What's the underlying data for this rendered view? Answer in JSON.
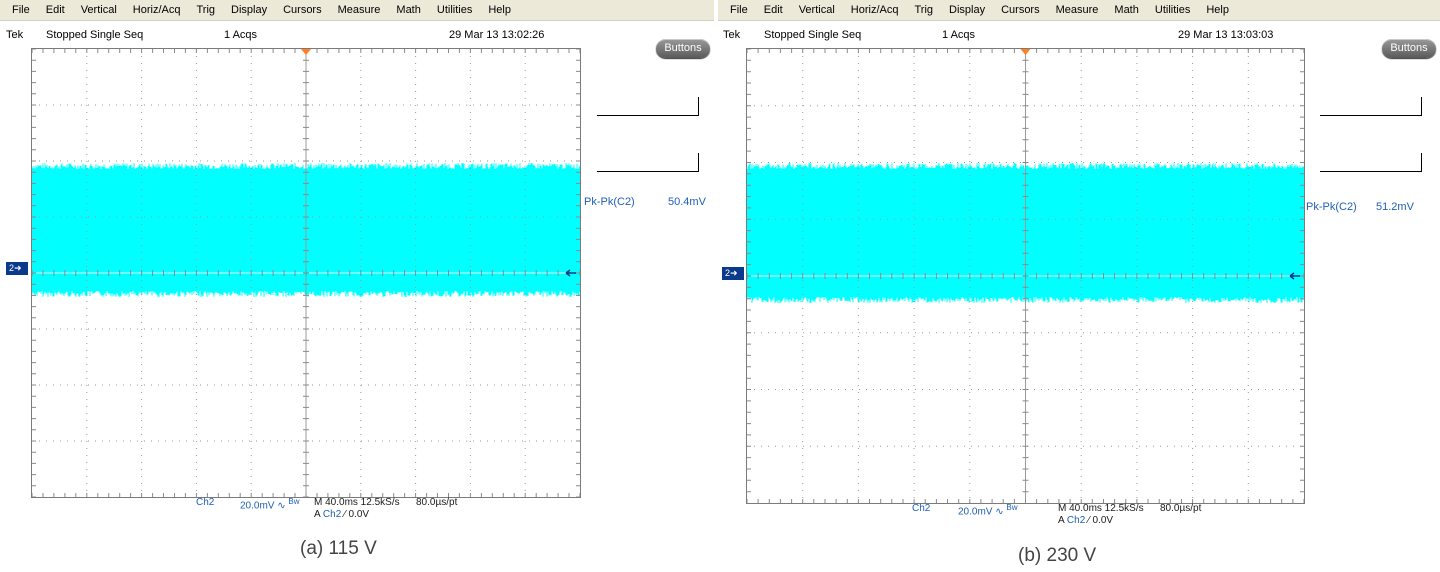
{
  "menu": [
    "File",
    "Edit",
    "Vertical",
    "Horiz/Acq",
    "Trig",
    "Display",
    "Cursors",
    "Measure",
    "Math",
    "Utilities",
    "Help"
  ],
  "colors": {
    "trace": "#00ffff",
    "grid": "#9a9a9a",
    "readout": "#1f5fb8",
    "marker": "#0b3a8c",
    "trigger": "#ff7f27"
  },
  "icons": {
    "trigger_position": "down-triangle-icon",
    "channel_marker": "right-arrow-icon",
    "level_marker": "left-arrow-icon"
  },
  "panels": [
    {
      "brand": "Tek",
      "status": "Stopped  Single Seq",
      "acqs": "1 Acqs",
      "datetime": "29 Mar 13 13:02:26",
      "buttons_label": "Buttons",
      "channel_marker": "2",
      "measurement_label": "Pk-Pk(C2)",
      "measurement_value": "50.4mV",
      "channel": "Ch2",
      "volts_div": "20.0mV",
      "bw_symbol": "∿",
      "bw": "Bw",
      "timebase": "M 40.0ms 12.5kS/s",
      "per_point": "80.0µs/pt",
      "trigger_prefix": "A",
      "trigger_channel": "Ch2",
      "trigger_slope": "⁄",
      "trigger_level": "0.0V",
      "caption": "(a) 115 V"
    },
    {
      "brand": "Tek",
      "status": "Stopped  Single Seq",
      "acqs": "1 Acqs",
      "datetime": "29 Mar 13 13:03:03",
      "buttons_label": "Buttons",
      "channel_marker": "2",
      "measurement_label": "Pk-Pk(C2)",
      "measurement_value": "51.2mV",
      "channel": "Ch2",
      "volts_div": "20.0mV",
      "bw_symbol": "∿",
      "bw": "Bw",
      "timebase": "M 40.0ms 12.5kS/s",
      "per_point": "80.0µs/pt",
      "trigger_prefix": "A",
      "trigger_channel": "Ch2",
      "trigger_slope": "⁄",
      "trigger_level": "0.0V",
      "caption": "(b) 230 V"
    }
  ]
}
